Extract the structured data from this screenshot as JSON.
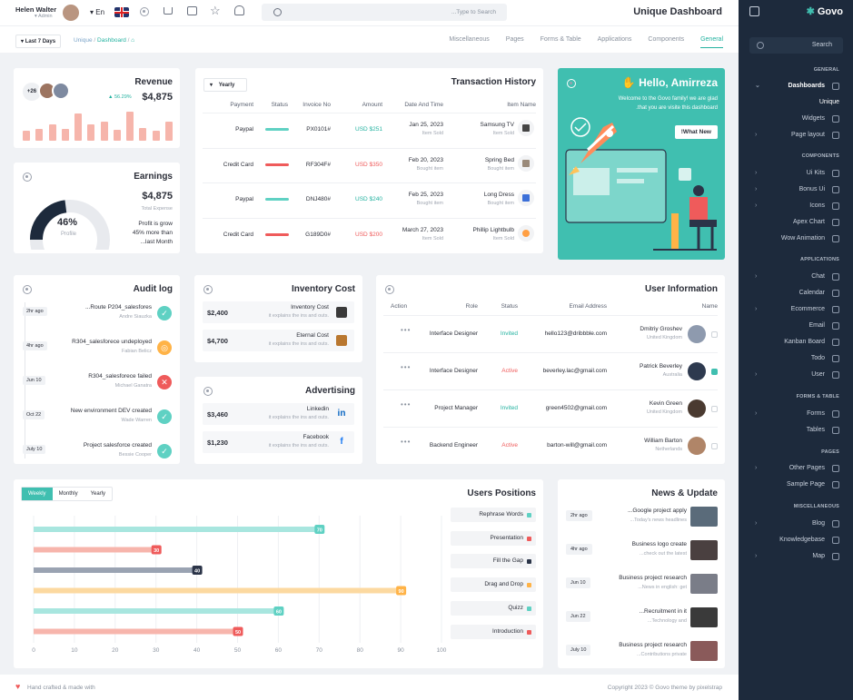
{
  "header": {
    "user_name": "Helen Walter",
    "user_role": "Admin",
    "lang": "En",
    "search_placeholder": "...Type to Search",
    "title": "Unique Dashboard"
  },
  "subheader": {
    "filter": "Last 7 Days",
    "breadcrumb": [
      "Unique",
      "Dashboard"
    ],
    "tabs": [
      "Miscellaneous",
      "Pages",
      "Forms & Table",
      "Applications",
      "Components",
      "General"
    ],
    "active_tab": "General"
  },
  "revenue": {
    "title": "Revenue",
    "badge": "+26",
    "change": "56.29%",
    "value": "$4,875",
    "bars": [
      0.35,
      0.4,
      0.55,
      0.4,
      0.95,
      0.55,
      0.65,
      0.38,
      1.0,
      0.45,
      0.35,
      0.65
    ]
  },
  "earnings": {
    "title": "Earnings",
    "value": "$4,875",
    "sub": "Total Expense",
    "percent": "46%",
    "percent_label": "Profile",
    "percent_value": 46,
    "note1": "Profit is grow",
    "note2": "45% more than",
    "note3": "...last Month"
  },
  "transactions": {
    "title": "Transaction History",
    "filter": "Yearly",
    "columns": [
      "Payment",
      "Status",
      "Invoice No",
      "Amount",
      "Date And Time",
      "Item Name"
    ],
    "rows": [
      {
        "payment": "Paypal",
        "status": "teal",
        "invoice": "PX0101#",
        "amount": "USD $251",
        "date": "Jan 25, 2023",
        "date_sub": "Item Sold",
        "item": "Samsung TV",
        "item_sub": "Item Sold"
      },
      {
        "payment": "Credit Card",
        "status": "red",
        "invoice": "RF304F#",
        "amount": "USD $350",
        "date": "Feb 20, 2023",
        "date_sub": "Bought item",
        "item": "Spring Bed",
        "item_sub": "Bought item"
      },
      {
        "payment": "Paypal",
        "status": "teal",
        "invoice": "DNJ480#",
        "amount": "USD $240",
        "date": "Feb 25, 2023",
        "date_sub": "Bought item",
        "item": "Long Dress",
        "item_sub": "Bought item"
      },
      {
        "payment": "Credit Card",
        "status": "red",
        "invoice": "G189D0#",
        "amount": "USD $200",
        "date": "March 27, 2023",
        "date_sub": "Item Sold",
        "item": "Phillip Lightbulb",
        "item_sub": "Item Sold"
      }
    ]
  },
  "promo": {
    "greeting": "Hello, Amirreza",
    "line1": "Welcome to the Govo family! we are glad",
    "line2": ".that you are visite this dashboard",
    "button": "!What New"
  },
  "audit": {
    "title": "Audit log",
    "items": [
      {
        "time": "2hr ago",
        "title": "...Route P204_salesfores",
        "by": "Andre Siauzka",
        "state": "ok"
      },
      {
        "time": "4hr ago",
        "title": "R304_salesforece undeployed",
        "by": "Fabian Belicz",
        "state": "warn"
      },
      {
        "time": "Jun 10",
        "title": "R304_salesforece failed",
        "by": "Michael Ganatra",
        "state": "fail"
      },
      {
        "time": "Oct 22",
        "title": "New environment DEV created",
        "by": "Wade Warren",
        "state": "ok"
      },
      {
        "time": "July 10",
        "title": "Project salesforce created",
        "by": "Bessie Cooper",
        "state": "ok"
      }
    ]
  },
  "inventory": {
    "title": "Inventory Cost",
    "items": [
      {
        "amount": "$2,400",
        "name": "Inventory Cost",
        "desc": "it explains the ins and outs."
      },
      {
        "amount": "$4,700",
        "name": "Eternal Cost",
        "desc": "it explains the ins and outs."
      }
    ]
  },
  "advertising": {
    "title": "Advertising",
    "items": [
      {
        "amount": "$3,460",
        "name": "Linkedin",
        "desc": "it explains the ins and outs."
      },
      {
        "amount": "$1,230",
        "name": "Facebook",
        "desc": "it explains the ins and outs."
      }
    ]
  },
  "users": {
    "title": "User Information",
    "columns": [
      "Action",
      "Role",
      "Status",
      "Email Address",
      "Name"
    ],
    "rows": [
      {
        "role": "Interface Designer",
        "status": "Invited",
        "email": "hello123@dribbble.com",
        "name": "Dmitriy Groshev",
        "loc": "United Kingdom",
        "checked": false
      },
      {
        "role": "Interface Designer",
        "status": "Active",
        "email": "beverley.lac@gmail.com",
        "name": "Patrick Beverley",
        "loc": "Australia",
        "checked": true
      },
      {
        "role": "Project Manager",
        "status": "Invited",
        "email": "green4502@gmail.com",
        "name": "Kevin Green",
        "loc": "United Kingdom",
        "checked": false
      },
      {
        "role": "Backend Engineer",
        "status": "Active",
        "email": "barton-will@gmail.com",
        "name": "William Barton",
        "loc": "Netherlands",
        "checked": false
      }
    ]
  },
  "positions": {
    "title": "Users Positions",
    "tabs": [
      "Weekly",
      "Monthly",
      "Yearly"
    ]
  },
  "chart_data": {
    "type": "bar",
    "orientation": "horizontal",
    "categories": [
      "Rephrase Words",
      "Presentation",
      "Fill the Gap",
      "Drag and Drop",
      "Quizz",
      "Introduction"
    ],
    "values": [
      70,
      30,
      40,
      90,
      60,
      50
    ],
    "colors": [
      "#a8e6df",
      "#f7b5ac",
      "#9aa3b2",
      "#fcd9a0",
      "#a8e6df",
      "#f7b5ac"
    ],
    "legend_colors": [
      "#5fd1c3",
      "#ef5b5b",
      "#2b3448",
      "#ffb347",
      "#5fd1c3",
      "#ef5b5b"
    ],
    "xlim": [
      0,
      100
    ],
    "xticks": [
      0,
      10,
      20,
      30,
      40,
      50,
      60,
      70,
      80,
      90,
      100
    ],
    "grid": true
  },
  "news": {
    "title": "News & Update",
    "items": [
      {
        "time": "2hr ago",
        "title": "...Google project apply",
        "desc": "...Today's news headlines"
      },
      {
        "time": "4hr ago",
        "title": "Business logo create",
        "desc": "...check out the latest"
      },
      {
        "time": "Jun 10",
        "title": "Business project research",
        "desc": "...News in english: get"
      },
      {
        "time": "Jun 22",
        "title": "...Recruitment in it",
        "desc": "...Technology and"
      },
      {
        "time": "July 10",
        "title": "Business project research",
        "desc": "...Contributions private"
      }
    ]
  },
  "footer": {
    "left": "Hand crafted & made with",
    "right": "Copyright 2023 © Govo theme by pixelstrap"
  },
  "sidebar": {
    "logo": "Govo",
    "search": "Search",
    "sections": [
      {
        "title": "GENERAL"
      },
      {
        "title": "COMPONENTS"
      },
      {
        "title": "APPLICATIONS"
      },
      {
        "title": "FORMS & TABLE"
      },
      {
        "title": "PAGES"
      },
      {
        "title": "MISCELLANEOUS"
      }
    ],
    "items": [
      "Dashboards",
      "Unique",
      "Widgets",
      "Page layout",
      "Ui Kits",
      "Bonus Ui",
      "Icons",
      "Apex Chart",
      "Wow Animation",
      "Chat",
      "Calendar",
      "Ecommerce",
      "Email",
      "Kanban Board",
      "Todo",
      "User",
      "Forms",
      "Tables",
      "Other Pages",
      "Sample Page",
      "Blog",
      "Knowledgebase",
      "Map"
    ]
  }
}
